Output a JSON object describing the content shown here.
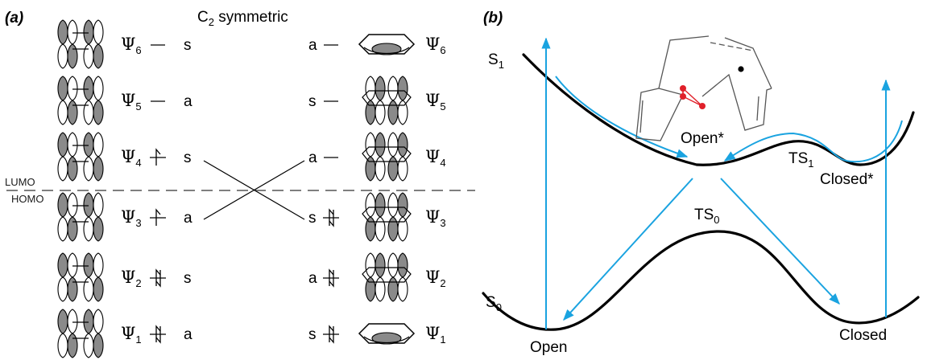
{
  "panel_a": {
    "tag": "(a)",
    "title": "C",
    "title_sub": "2",
    "title_rest": " symmetric",
    "lumo": "LUMO",
    "homo": "HOMO",
    "left_orbitals": [
      {
        "psi": "Ψ",
        "n": "6",
        "sym": "s",
        "electrons": 0
      },
      {
        "psi": "Ψ",
        "n": "5",
        "sym": "a",
        "electrons": 0
      },
      {
        "psi": "Ψ",
        "n": "4",
        "sym": "s",
        "electrons": 1
      },
      {
        "psi": "Ψ",
        "n": "3",
        "sym": "a",
        "electrons": 1
      },
      {
        "psi": "Ψ",
        "n": "2",
        "sym": "s",
        "electrons": 2
      },
      {
        "psi": "Ψ",
        "n": "1",
        "sym": "a",
        "electrons": 2
      }
    ],
    "right_orbitals": [
      {
        "psi": "Ψ",
        "n": "6",
        "sym": "a",
        "electrons": 0
      },
      {
        "psi": "Ψ",
        "n": "5",
        "sym": "s",
        "electrons": 0
      },
      {
        "psi": "Ψ",
        "n": "4",
        "sym": "a",
        "electrons": 0
      },
      {
        "psi": "Ψ",
        "n": "3",
        "sym": "s",
        "electrons": 2
      },
      {
        "psi": "Ψ",
        "n": "2",
        "sym": "a",
        "electrons": 2
      },
      {
        "psi": "Ψ",
        "n": "1",
        "sym": "s",
        "electrons": 2
      }
    ]
  },
  "panel_b": {
    "tag": "(b)",
    "s1": {
      "main": "S",
      "sub": "1"
    },
    "s0": {
      "main": "S",
      "sub": "0"
    },
    "ts1": {
      "main": "TS",
      "sub": "1"
    },
    "ts0": {
      "main": "TS",
      "sub": "0"
    },
    "open_star": "Open*",
    "closed_star": "Closed*",
    "open": "Open",
    "closed": "Closed"
  },
  "colors": {
    "arrow": "#1aa3e0",
    "atom": "#e0202a",
    "lobe": "#8a8a8a"
  }
}
